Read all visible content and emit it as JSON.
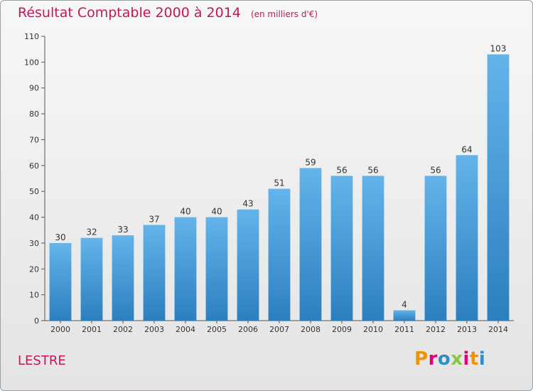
{
  "header": {
    "title": "Résultat Comptable 2000 à 2014",
    "subtitle": "(en milliers d'€)"
  },
  "footer": {
    "location": "LESTRE",
    "logo_text": "Proxiti",
    "logo_colors": [
      "#f39200",
      "#e2007a",
      "#2f8ec9",
      "#8cc63f",
      "#e2007a",
      "#f39200",
      "#2f8ec9"
    ]
  },
  "colors": {
    "bar_light": "#64b4ea",
    "bar_dark": "#2c7fbf",
    "title": "#c2185b"
  },
  "chart_data": {
    "type": "bar",
    "title": "Résultat Comptable 2000 à 2014",
    "subtitle": "(en milliers d'€)",
    "categories": [
      "2000",
      "2001",
      "2002",
      "2003",
      "2004",
      "2005",
      "2006",
      "2007",
      "2008",
      "2009",
      "2010",
      "2011",
      "2012",
      "2013",
      "2014"
    ],
    "values": [
      30,
      32,
      33,
      37,
      40,
      40,
      43,
      51,
      59,
      56,
      56,
      4,
      56,
      64,
      103
    ],
    "ylim": [
      0,
      110
    ],
    "yticks": [
      0,
      10,
      20,
      30,
      40,
      50,
      60,
      70,
      80,
      90,
      100,
      110
    ],
    "grid": false
  }
}
